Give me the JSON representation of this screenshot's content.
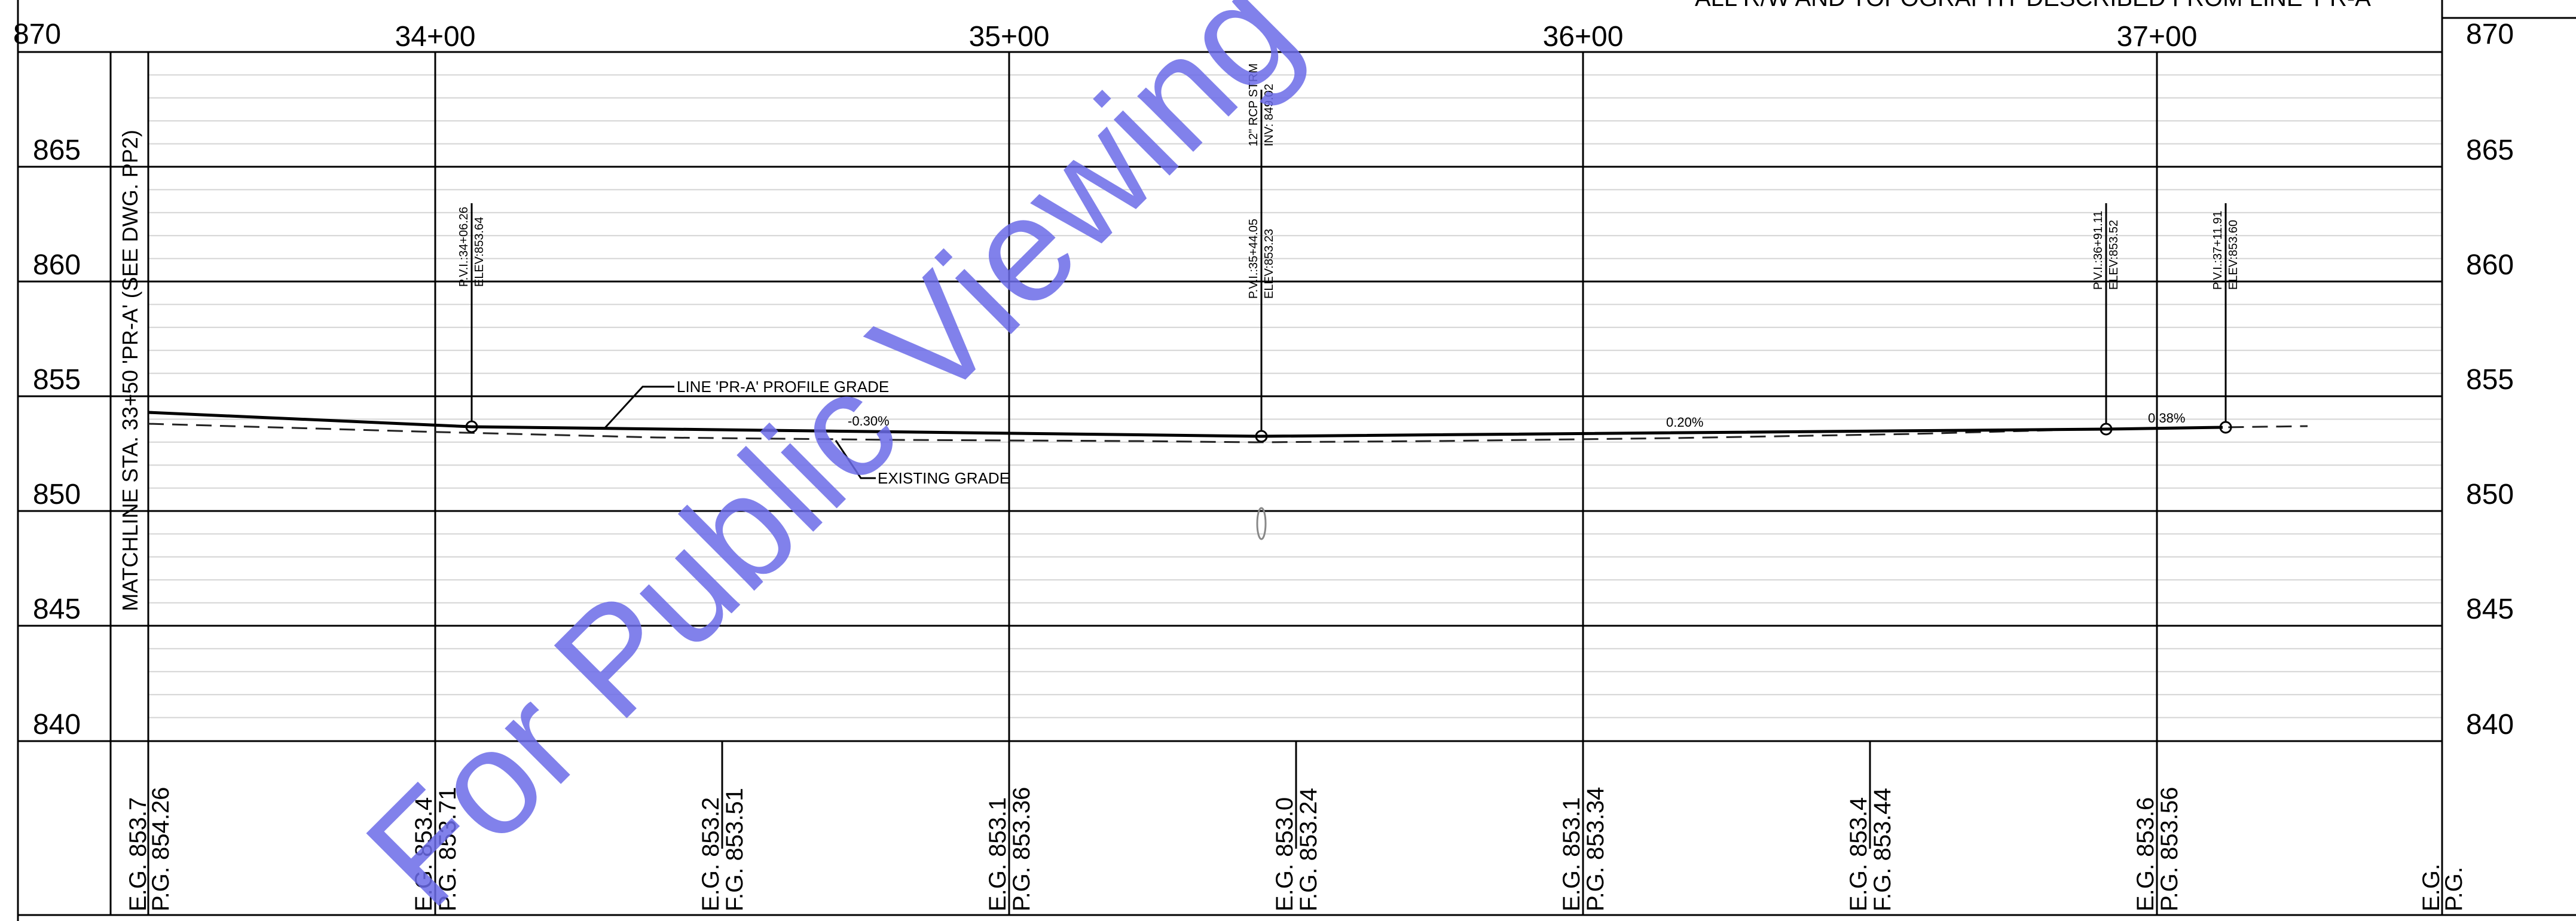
{
  "header_note": "ALL R/W AND TOPOGRAPHY DESCRIBED FROM LINE 'PR-A'",
  "watermark": "For Public Viewing",
  "matchline": "MATCHLINE STA. 33+50 'PR-A' (SEE DWG. PP2)",
  "stations": [
    "34+00",
    "35+00",
    "36+00",
    "37+00"
  ],
  "elevations": [
    "870",
    "865",
    "860",
    "855",
    "850",
    "845",
    "840"
  ],
  "profile_grade_label": "LINE 'PR-A' PROFILE GRADE",
  "existing_grade_label": "EXISTING GRADE",
  "slopes": [
    "-0.30%",
    "0.20%",
    "0.38%"
  ],
  "pvis": [
    {
      "station": "P.V.I.:34+06.26",
      "elevation": "ELEV:853.64"
    },
    {
      "station": "P.V.I.:35+44.05",
      "elevation": "ELEV:853.23"
    },
    {
      "station": "P.V.I.:36+91.11",
      "elevation": "ELEV:853.52"
    },
    {
      "station": "P.V.I.:37+11.91",
      "elevation": "ELEV:853.60"
    }
  ],
  "culvert": {
    "size": "12\" RCP STRM",
    "invert": "INV: 849.02"
  },
  "grade_table": [
    {
      "eg": "E.G. 853.7",
      "pg": "P.G. 854.26"
    },
    {
      "eg": "E.G. 853.4",
      "pg": "P.G. 853.71"
    },
    {
      "eg": "E.G. 853.2",
      "pg": "F.G. 853.51"
    },
    {
      "eg": "E.G. 853.1",
      "pg": "P.G. 853.36"
    },
    {
      "eg": "E.G. 853.0",
      "pg": "F.G. 853.24"
    },
    {
      "eg": "E.G. 853.1",
      "pg": "P.G. 853.34"
    },
    {
      "eg": "E.G. 853.4",
      "pg": "F.G. 853.44"
    },
    {
      "eg": "E.G. 853.6",
      "pg": "P.G. 853.56"
    },
    {
      "eg": "E.G.",
      "pg": "P.G."
    }
  ]
}
